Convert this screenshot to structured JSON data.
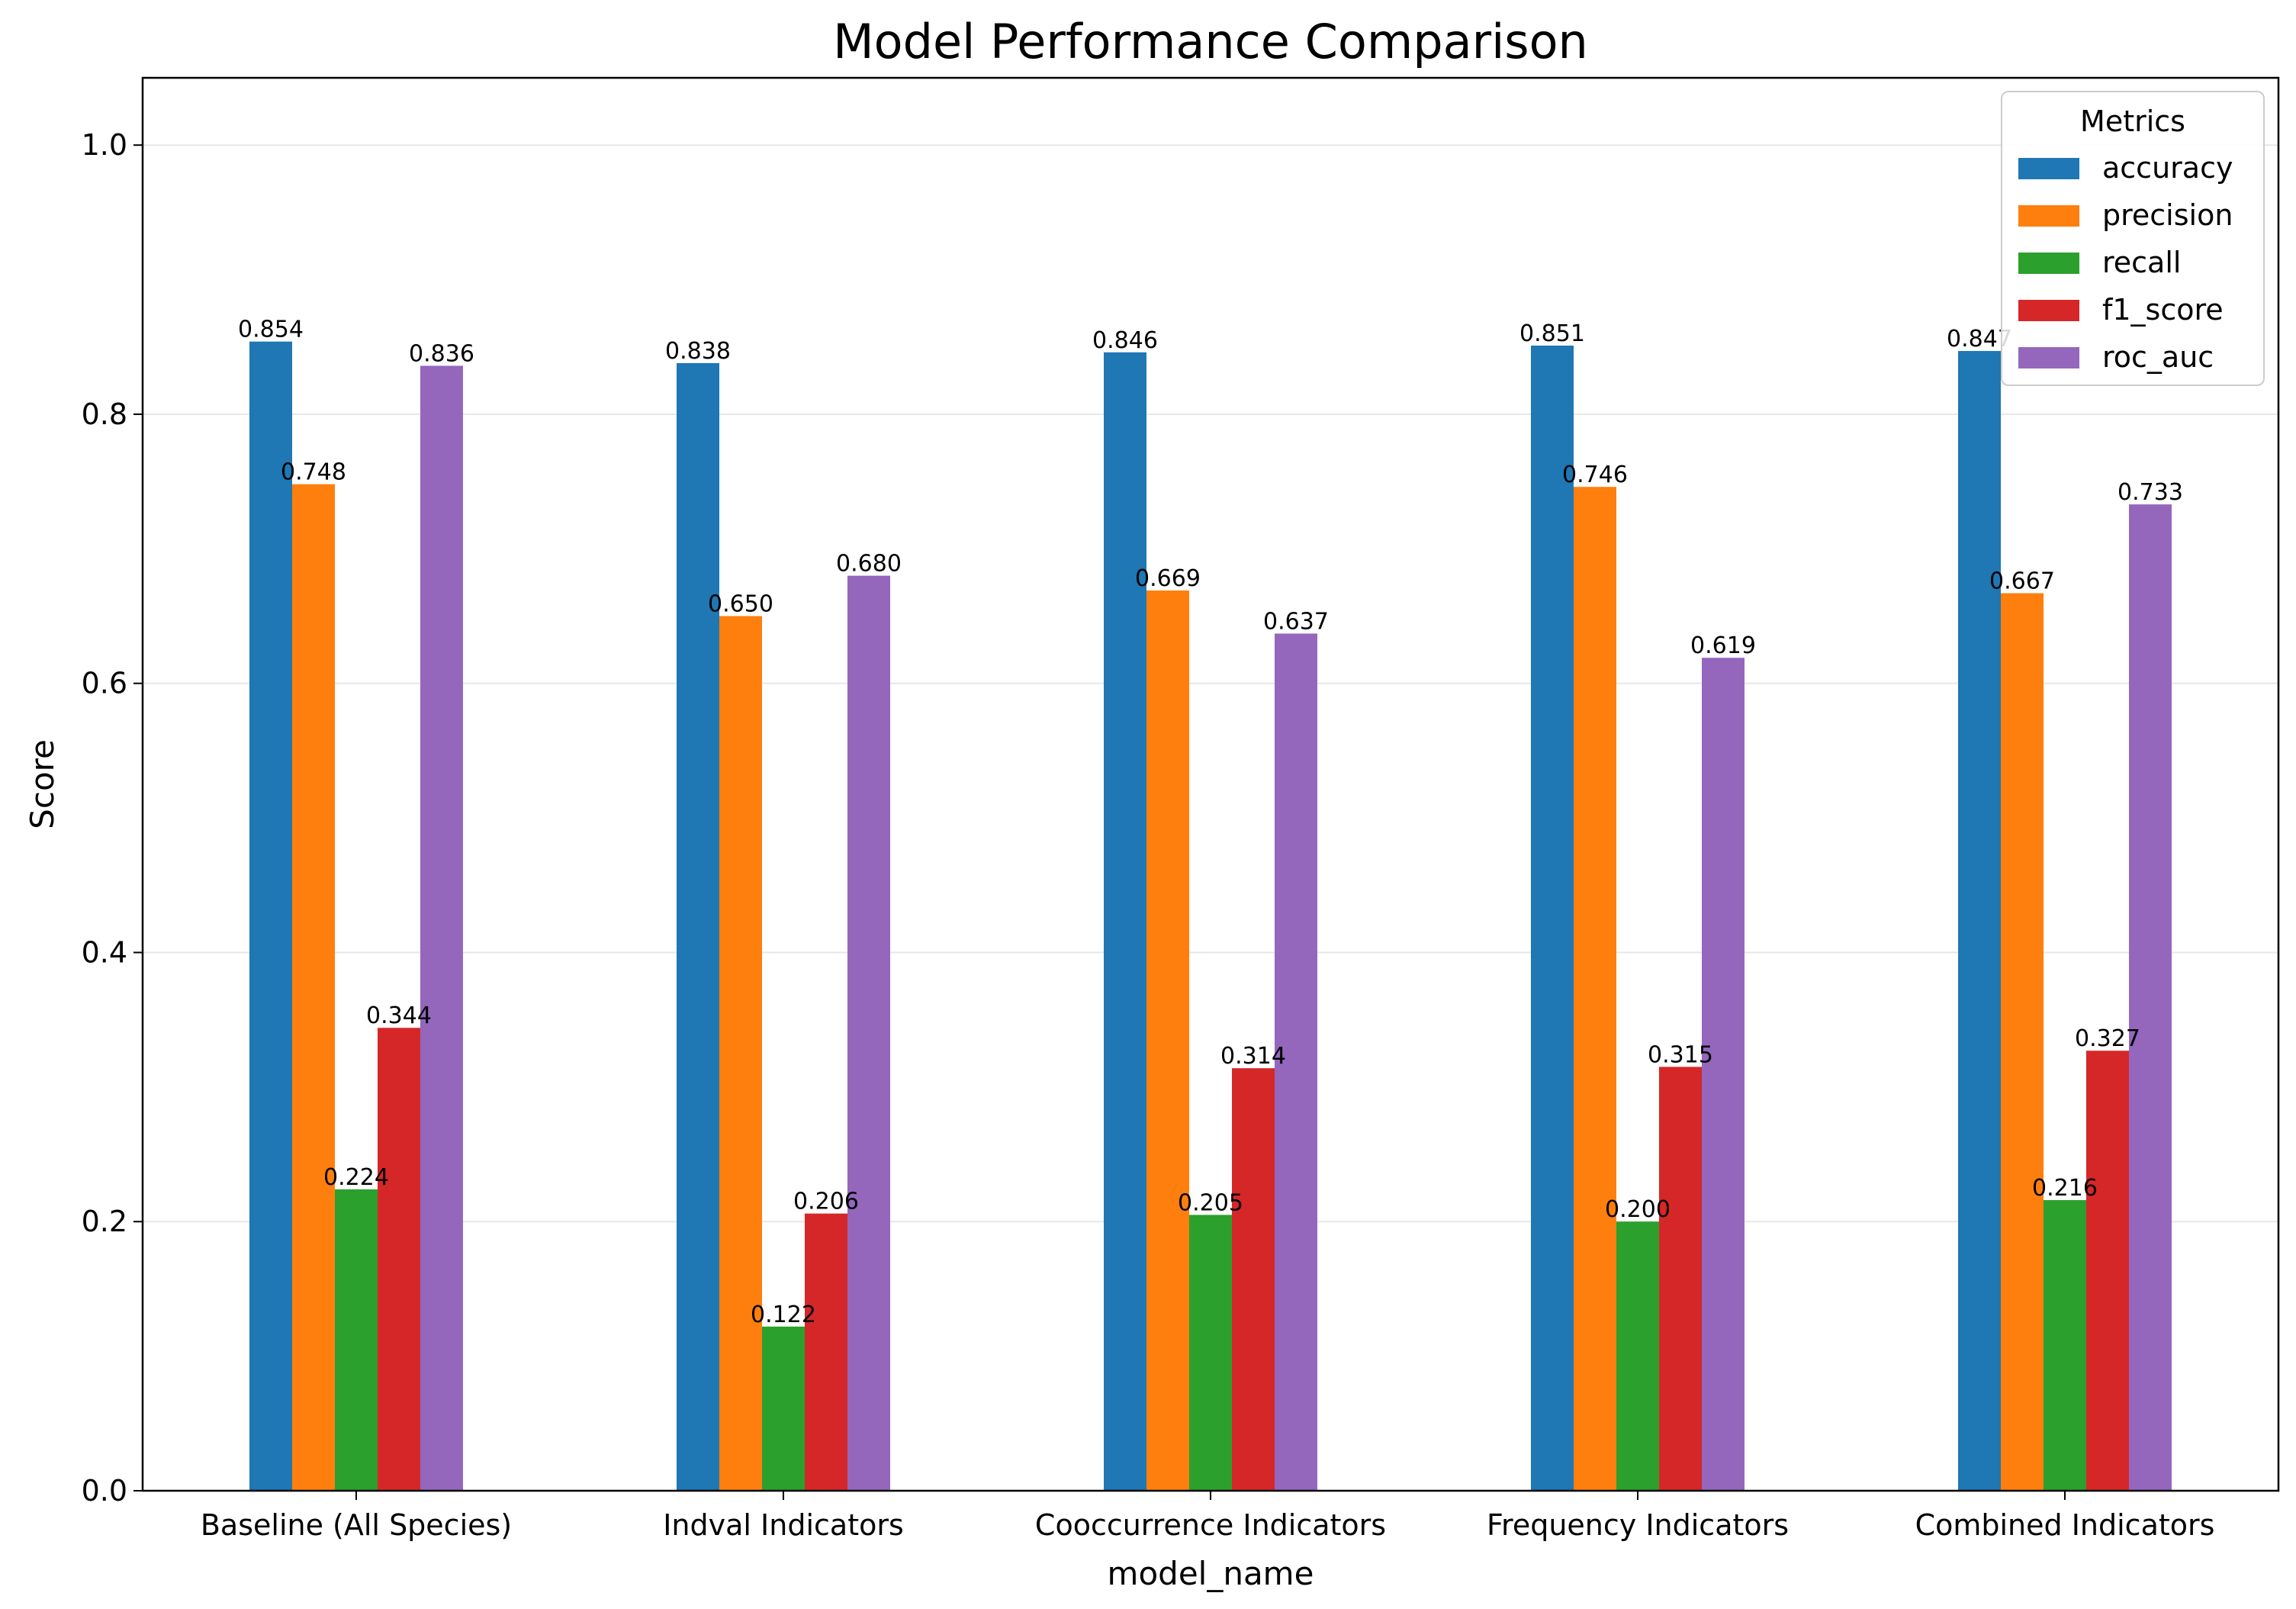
{
  "chart_data": {
    "type": "bar",
    "title": "Model Performance Comparison",
    "xlabel": "model_name",
    "ylabel": "Score",
    "ylim": [
      0,
      1.05
    ],
    "yticks": [
      0.0,
      0.2,
      0.4,
      0.6,
      0.8,
      1.0
    ],
    "ytick_labels": [
      "0.0",
      "0.2",
      "0.4",
      "0.6",
      "0.8",
      "1.0"
    ],
    "grid": "horizontal",
    "legend_title": "Metrics",
    "legend_position": "top-right",
    "categories": [
      "Baseline (All Species)",
      "Indval Indicators",
      "Cooccurrence Indicators",
      "Frequency Indicators",
      "Combined Indicators"
    ],
    "series": [
      {
        "name": "accuracy",
        "color": "#1f77b4",
        "values": [
          0.854,
          0.838,
          0.846,
          0.851,
          0.847
        ],
        "labels": [
          "0.854",
          "0.838",
          "0.846",
          "0.851",
          "0.847"
        ]
      },
      {
        "name": "precision",
        "color": "#ff7f0e",
        "values": [
          0.748,
          0.65,
          0.669,
          0.746,
          0.667
        ],
        "labels": [
          "0.748",
          "0.650",
          "0.669",
          "0.746",
          "0.667"
        ]
      },
      {
        "name": "recall",
        "color": "#2ca02c",
        "values": [
          0.224,
          0.122,
          0.205,
          0.2,
          0.216
        ],
        "labels": [
          "0.224",
          "0.122",
          "0.205",
          "0.200",
          "0.216"
        ]
      },
      {
        "name": "f1_score",
        "color": "#d62728",
        "values": [
          0.344,
          0.206,
          0.314,
          0.315,
          0.327
        ],
        "labels": [
          "0.344",
          "0.206",
          "0.314",
          "0.315",
          "0.327"
        ]
      },
      {
        "name": "roc_auc",
        "color": "#9467bd",
        "values": [
          0.836,
          0.68,
          0.637,
          0.619,
          0.733
        ],
        "labels": [
          "0.836",
          "0.680",
          "0.637",
          "0.619",
          "0.733"
        ]
      }
    ]
  }
}
